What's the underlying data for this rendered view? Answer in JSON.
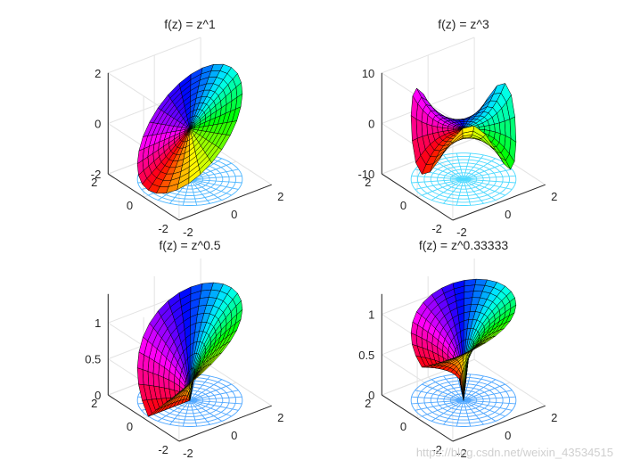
{
  "figure": {
    "watermark": "https://blog.csdn.net/weixin_43534515"
  },
  "chart_data": [
    {
      "type": "surface",
      "title": "f(z) = z^1",
      "exponent": 1,
      "xlabel": "",
      "ylabel": "",
      "zlabel": "",
      "xlim": [
        -2,
        2
      ],
      "ylim": [
        -2,
        2
      ],
      "zlim": [
        -2,
        2
      ],
      "x_ticks": [
        "-2",
        "0",
        "2"
      ],
      "y_ticks": [
        "-2",
        "0",
        "2"
      ],
      "z_ticks": [
        "-2",
        "0",
        "2"
      ],
      "grid": true,
      "colormap": "hsv",
      "mesh_color": "#4db6ff"
    },
    {
      "type": "surface",
      "title": "f(z) = z^3",
      "exponent": 3,
      "xlabel": "",
      "ylabel": "",
      "zlabel": "",
      "xlim": [
        -2,
        2
      ],
      "ylim": [
        -2,
        2
      ],
      "zlim": [
        -10,
        10
      ],
      "x_ticks": [
        "-2",
        "0",
        "2"
      ],
      "y_ticks": [
        "-2",
        "0",
        "2"
      ],
      "z_ticks": [
        "-10",
        "0",
        "10"
      ],
      "grid": true,
      "colormap": "hsv",
      "mesh_color": "#4dd9ff"
    },
    {
      "type": "surface",
      "title": "f(z) = z^0.5",
      "exponent": 0.5,
      "xlabel": "",
      "ylabel": "",
      "zlabel": "",
      "xlim": [
        -2,
        2
      ],
      "ylim": [
        -2,
        2
      ],
      "zlim": [
        0,
        1.4
      ],
      "x_ticks": [
        "-2",
        "0",
        "2"
      ],
      "y_ticks": [
        "-2",
        "0",
        "2"
      ],
      "z_ticks": [
        "0",
        "0.5",
        "1"
      ],
      "grid": true,
      "colormap": "hsv",
      "mesh_color": "#4da6ff"
    },
    {
      "type": "surface",
      "title": "f(z) = z^0.33333",
      "exponent": 0.33333,
      "xlabel": "",
      "ylabel": "",
      "zlabel": "",
      "xlim": [
        -2,
        2
      ],
      "ylim": [
        -2,
        2
      ],
      "zlim": [
        0,
        1.25
      ],
      "x_ticks": [
        "-2",
        "0",
        "2"
      ],
      "y_ticks": [
        "-2",
        "0",
        "2"
      ],
      "z_ticks": [
        "0",
        "0.5",
        "1"
      ],
      "grid": true,
      "colormap": "hsv",
      "mesh_color": "#4da6ff"
    }
  ]
}
